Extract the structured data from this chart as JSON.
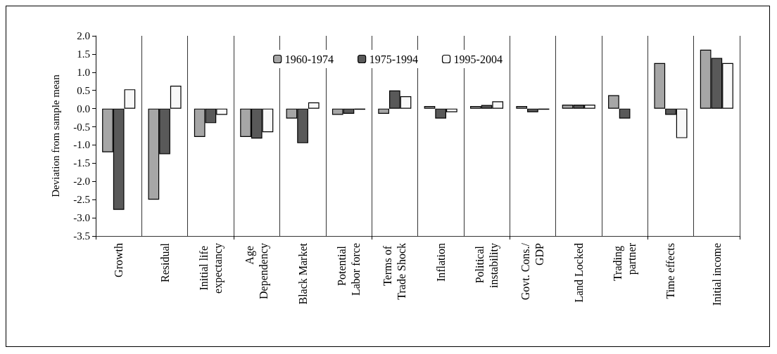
{
  "chart_data": {
    "type": "bar",
    "ylabel": "Deviation from sample mean",
    "categories": [
      "Growth",
      "Residual",
      "Initial life expectancy",
      "Age Dependency",
      "Black Market",
      "Potential Labor force",
      "Terms of Trade Shock",
      "Inflation",
      "Political instability",
      "Govt. Cons./GDP",
      "Land Locked",
      "Trading partner",
      "Time effects",
      "Initial income"
    ],
    "series": [
      {
        "name": "1960-1974",
        "color": "#a6a6a6",
        "values": [
          -1.2,
          -2.5,
          -0.78,
          -0.78,
          -0.27,
          -0.17,
          -0.14,
          0.07,
          0.07,
          0.07,
          0.11,
          0.37,
          1.25,
          1.62
        ]
      },
      {
        "name": "1975-1994",
        "color": "#595959",
        "values": [
          -2.78,
          -1.25,
          -0.4,
          -0.82,
          -0.95,
          -0.14,
          0.5,
          -0.27,
          0.1,
          -0.1,
          0.11,
          -0.27,
          -0.17,
          1.39
        ]
      },
      {
        "name": "1995-2004",
        "color": "#f8f8f8",
        "values": [
          0.53,
          0.63,
          -0.17,
          -0.65,
          0.17,
          -0.03,
          0.34,
          -0.1,
          0.2,
          -0.03,
          0.11,
          null,
          -0.81,
          1.25
        ]
      }
    ],
    "ylim": [
      -3.5,
      2.0
    ],
    "yticks": [
      {
        "value": -3.5,
        "label": "-3.5"
      },
      {
        "value": -3,
        "label": "-3.0"
      },
      {
        "value": -2.5,
        "label": "-2.5"
      },
      {
        "value": -2,
        "label": "-2.0"
      },
      {
        "value": -1.5,
        "label": "-1.5"
      },
      {
        "value": -1,
        "label": "-1.0"
      },
      {
        "value": -0.5,
        "label": "-0.5"
      },
      {
        "value": 0,
        "label": "0.0"
      },
      {
        "value": 0.5,
        "label": "0.5"
      },
      {
        "value": 1,
        "label": "1.0"
      },
      {
        "value": 1.5,
        "label": "1.5"
      },
      {
        "value": 2,
        "label": "2.0"
      }
    ],
    "grid": "x",
    "legend": "top"
  }
}
